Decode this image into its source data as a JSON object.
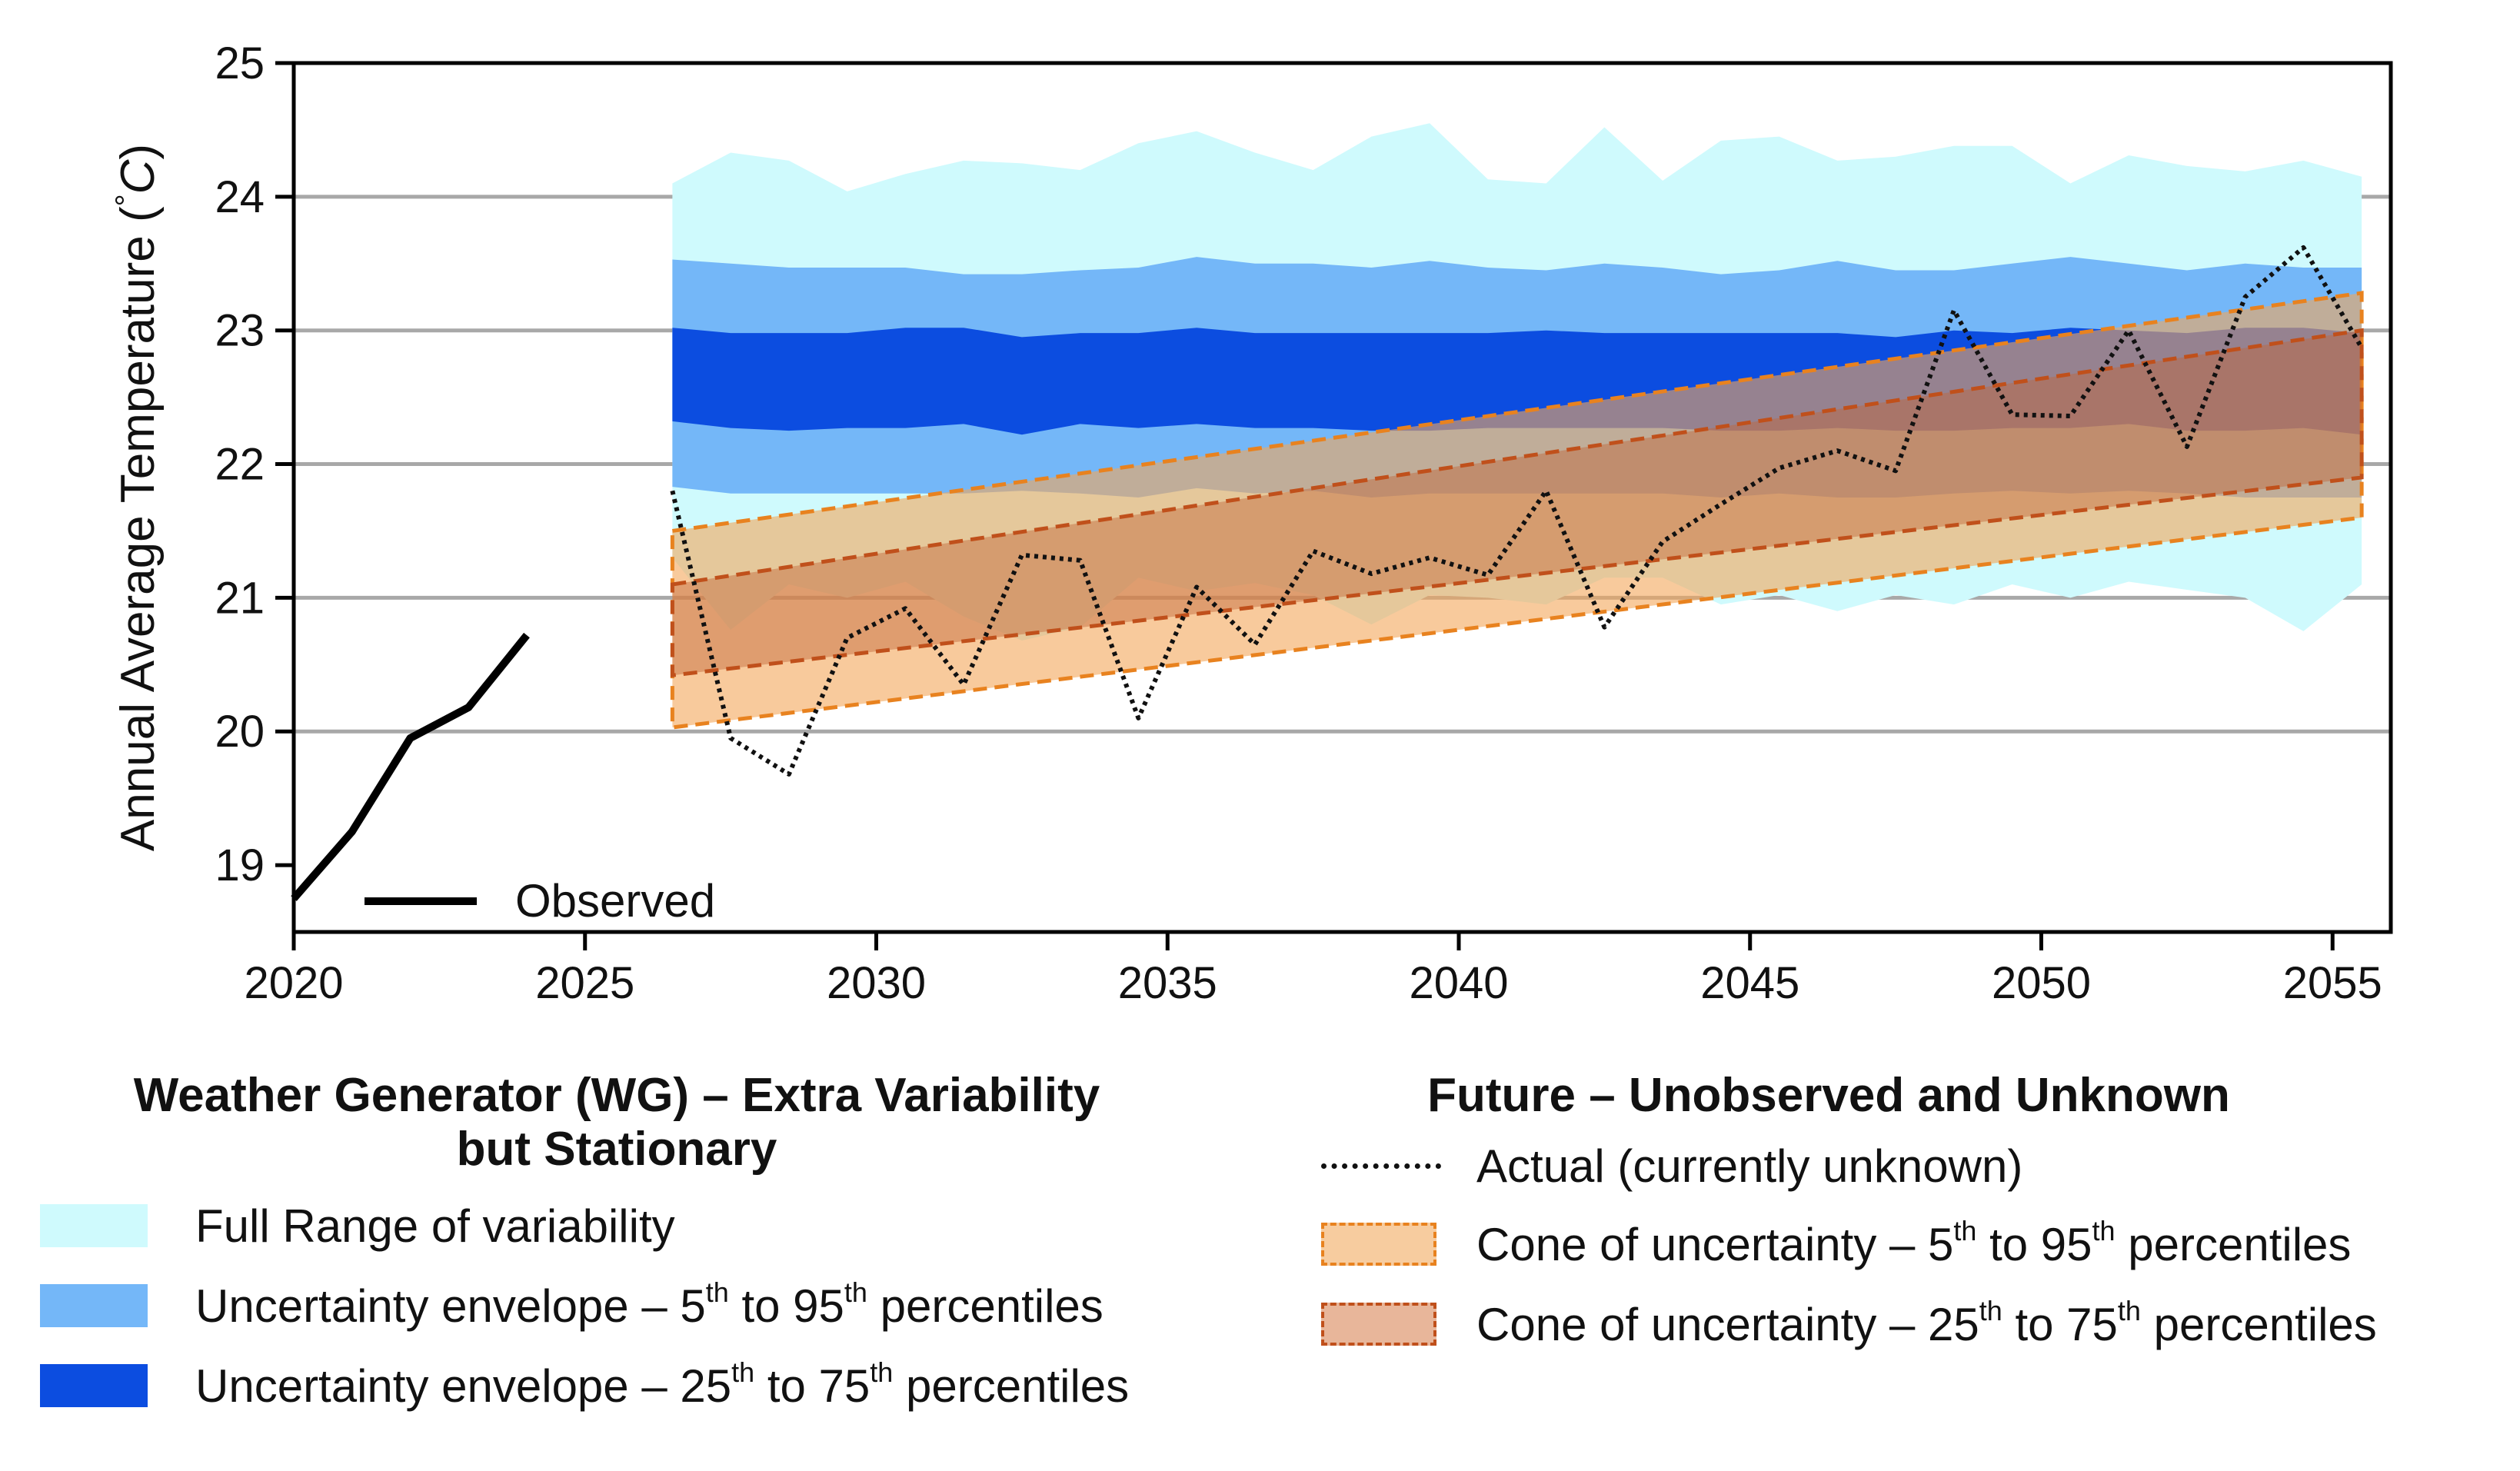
{
  "chart_data": {
    "type": "area",
    "ylabel_main": "Annual Average Temperature (",
    "ylabel_unit_deg": "°",
    "ylabel_unit_c": "C",
    "ylabel_close": ")",
    "xlim": [
      2020,
      2056
    ],
    "ylim": [
      18.5,
      25
    ],
    "xticks": [
      2020,
      2025,
      2030,
      2035,
      2040,
      2045,
      2050,
      2055
    ],
    "yticks": [
      19,
      20,
      21,
      22,
      23,
      24,
      25
    ],
    "grid_y": [
      20,
      21,
      22,
      23,
      24
    ],
    "observed": {
      "name": "Observed",
      "x": [
        2020,
        2021,
        2022,
        2023,
        2024
      ],
      "y": [
        18.75,
        19.25,
        19.95,
        20.18,
        20.72
      ]
    },
    "wg_years": [
      2026.5,
      2027.5,
      2028.5,
      2029.5,
      2030.5,
      2031.5,
      2032.5,
      2033.5,
      2034.5,
      2035.5,
      2036.5,
      2037.5,
      2038.5,
      2039.5,
      2040.5,
      2041.5,
      2042.5,
      2043.5,
      2044.5,
      2045.5,
      2046.5,
      2047.5,
      2048.5,
      2049.5,
      2050.5,
      2051.5,
      2052.5,
      2053.5,
      2054.5,
      2055.5
    ],
    "wg_full_upper": [
      24.1,
      24.33,
      24.27,
      24.04,
      24.17,
      24.27,
      24.25,
      24.2,
      24.4,
      24.49,
      24.33,
      24.2,
      24.45,
      24.55,
      24.13,
      24.1,
      24.52,
      24.12,
      24.42,
      24.45,
      24.27,
      24.3,
      24.38,
      24.38,
      24.1,
      24.31,
      24.23,
      24.19,
      24.27,
      24.15
    ],
    "wg_full_lower": [
      21.3,
      20.76,
      21.1,
      21.0,
      21.12,
      20.86,
      20.68,
      20.78,
      21.15,
      21.05,
      21.11,
      21.02,
      20.8,
      21.02,
      21.0,
      20.95,
      21.15,
      21.15,
      20.95,
      21.02,
      20.9,
      21.02,
      20.95,
      21.1,
      21.0,
      21.12,
      21.06,
      21.0,
      20.75,
      21.1
    ],
    "wg_p95": [
      23.53,
      23.5,
      23.47,
      23.47,
      23.47,
      23.42,
      23.42,
      23.45,
      23.47,
      23.55,
      23.5,
      23.5,
      23.47,
      23.52,
      23.47,
      23.45,
      23.5,
      23.47,
      23.42,
      23.45,
      23.52,
      23.45,
      23.45,
      23.5,
      23.55,
      23.5,
      23.45,
      23.5,
      23.47,
      23.47
    ],
    "wg_p5": [
      21.83,
      21.78,
      21.78,
      21.78,
      21.78,
      21.78,
      21.8,
      21.78,
      21.75,
      21.82,
      21.78,
      21.8,
      21.75,
      21.78,
      21.78,
      21.78,
      21.78,
      21.78,
      21.75,
      21.78,
      21.75,
      21.75,
      21.78,
      21.8,
      21.78,
      21.8,
      21.78,
      21.75,
      21.75,
      21.75
    ],
    "wg_p75": [
      23.02,
      22.98,
      22.98,
      22.98,
      23.02,
      23.02,
      22.95,
      22.98,
      22.98,
      23.02,
      22.98,
      22.98,
      22.98,
      22.98,
      22.98,
      23.0,
      22.98,
      22.98,
      22.98,
      22.98,
      22.98,
      22.95,
      23.0,
      22.98,
      23.02,
      23.0,
      22.98,
      23.02,
      23.02,
      22.98
    ],
    "wg_p25": [
      22.32,
      22.27,
      22.25,
      22.27,
      22.27,
      22.3,
      22.22,
      22.3,
      22.27,
      22.3,
      22.27,
      22.27,
      22.25,
      22.25,
      22.27,
      22.27,
      22.27,
      22.27,
      22.25,
      22.25,
      22.27,
      22.25,
      22.25,
      22.27,
      22.27,
      22.3,
      22.25,
      22.25,
      22.27,
      22.22
    ],
    "cone_x": [
      2026.5,
      2055.5
    ],
    "cone_95": [
      21.5,
      23.28
    ],
    "cone_5": [
      20.03,
      21.6
    ],
    "cone_75": [
      21.1,
      23.0
    ],
    "cone_25": [
      20.42,
      21.9
    ],
    "actual": {
      "name": "Actual (currently unknown)",
      "x": [
        2026.5,
        2027.5,
        2028.5,
        2029.5,
        2030.5,
        2031.5,
        2032.5,
        2033.5,
        2034.5,
        2035.5,
        2036.5,
        2037.5,
        2038.5,
        2039.5,
        2040.5,
        2041.5,
        2042.5,
        2043.5,
        2044.5,
        2045.5,
        2046.5,
        2047.5,
        2048.5,
        2049.5,
        2050.5,
        2051.5,
        2052.5,
        2053.5,
        2054.5,
        2055.5
      ],
      "y": [
        21.8,
        19.95,
        19.68,
        20.7,
        20.92,
        20.35,
        21.32,
        21.28,
        20.1,
        21.08,
        20.65,
        21.35,
        21.18,
        21.3,
        21.17,
        21.8,
        20.78,
        21.42,
        21.7,
        21.97,
        22.1,
        21.95,
        23.15,
        22.37,
        22.36,
        23.0,
        22.13,
        23.25,
        23.62,
        22.87
      ]
    },
    "colors": {
      "full_range": "#cffafd",
      "p5_95": "#74b7f8",
      "p25_75": "#0c4de0",
      "cone95_fill": "#f3a75a",
      "cone95_edge": "#e8821f",
      "cone75_fill": "#c2663a",
      "cone75_edge": "#c0501b",
      "observed": "#000000",
      "grid": "#a8a8a8"
    }
  },
  "legend_observed": "Observed",
  "legend_wg": {
    "title_line1": "Weather Generator (WG) – Extra Variability",
    "title_line2": "but Stationary",
    "full_range": "Full Range of variability",
    "env95_a": "Uncertainty envelope – 5",
    "env95_sup1": "th",
    "env95_b": " to 95",
    "env95_sup2": "th",
    "env95_c": " percentiles",
    "env75_a": "Uncertainty envelope – 25",
    "env75_sup1": "th",
    "env75_b": " to 75",
    "env75_sup2": "th",
    "env75_c": " percentiles"
  },
  "legend_future": {
    "title": "Future – Unobserved and Unknown",
    "actual": "Actual (currently unknown)",
    "cone95_a": "Cone of uncertainty – 5",
    "cone95_sup1": "th",
    "cone95_b": " to 95",
    "cone95_sup2": "th",
    "cone95_c": " percentiles",
    "cone75_a": "Cone of uncertainty – 25",
    "cone75_sup1": "th",
    "cone75_b": " to 75",
    "cone75_sup2": "th",
    "cone75_c": " percentiles"
  }
}
